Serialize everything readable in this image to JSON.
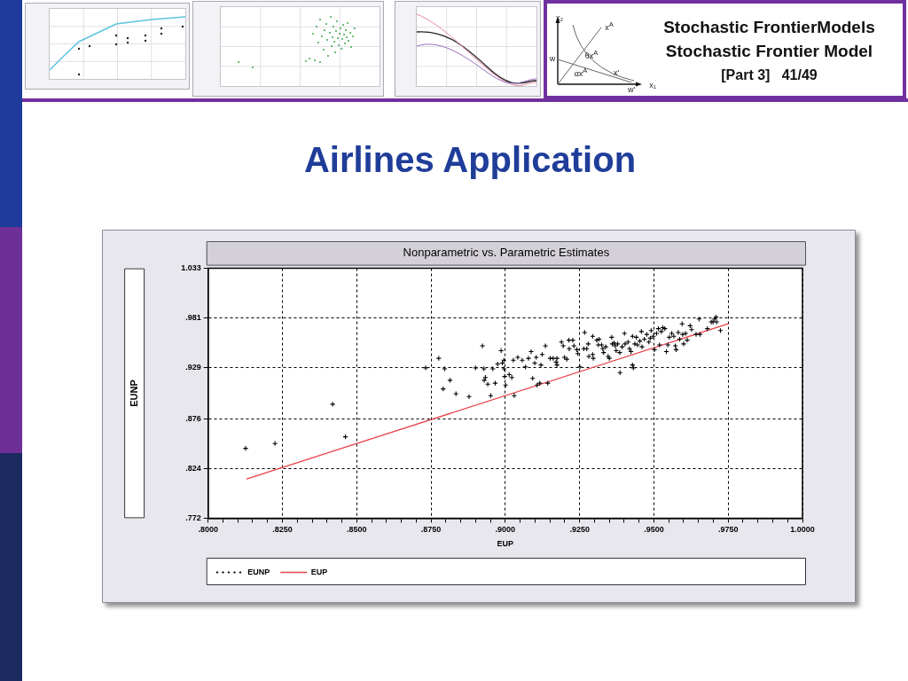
{
  "chart_data": {
    "type": "scatter",
    "title": "Airlines Application",
    "subtitle": "Nonparametric vs. Parametric Estimates",
    "xlabel": "EUP",
    "ylabel": "EUNP",
    "xlim": [
      0.8,
      1.0
    ],
    "xticks": [
      {
        "value": 0.8,
        "label": ".8000"
      },
      {
        "value": 0.805,
        "label": null
      },
      {
        "value": 0.81,
        "label": null
      },
      {
        "value": 0.815,
        "label": null
      },
      {
        "value": 0.82,
        "label": null
      },
      {
        "value": 0.825,
        "label": ".8250"
      },
      {
        "value": 0.83,
        "label": null
      },
      {
        "value": 0.835,
        "label": null
      },
      {
        "value": 0.84,
        "label": null
      },
      {
        "value": 0.845,
        "label": null
      },
      {
        "value": 0.85,
        "label": ".8500"
      },
      {
        "value": 0.855,
        "label": null
      },
      {
        "value": 0.86,
        "label": null
      },
      {
        "value": 0.865,
        "label": null
      },
      {
        "value": 0.87,
        "label": null
      },
      {
        "value": 0.875,
        "label": ".8750"
      },
      {
        "value": 0.88,
        "label": null
      },
      {
        "value": 0.885,
        "label": null
      },
      {
        "value": 0.89,
        "label": null
      },
      {
        "value": 0.895,
        "label": null
      },
      {
        "value": 0.9,
        "label": ".9000"
      },
      {
        "value": 0.905,
        "label": null
      },
      {
        "value": 0.91,
        "label": null
      },
      {
        "value": 0.915,
        "label": null
      },
      {
        "value": 0.92,
        "label": null
      },
      {
        "value": 0.925,
        "label": ".9250"
      },
      {
        "value": 0.93,
        "label": null
      },
      {
        "value": 0.935,
        "label": null
      },
      {
        "value": 0.94,
        "label": null
      },
      {
        "value": 0.945,
        "label": null
      },
      {
        "value": 0.95,
        "label": ".9500"
      },
      {
        "value": 0.955,
        "label": null
      },
      {
        "value": 0.96,
        "label": null
      },
      {
        "value": 0.965,
        "label": null
      },
      {
        "value": 0.97,
        "label": null
      },
      {
        "value": 0.975,
        "label": ".9750"
      },
      {
        "value": 0.98,
        "label": null
      },
      {
        "value": 0.985,
        "label": null
      },
      {
        "value": 0.99,
        "label": null
      },
      {
        "value": 0.995,
        "label": null
      },
      {
        "value": 1.0,
        "label": "1.0000"
      }
    ],
    "ylim": [
      0.772,
      1.033
    ],
    "yticks": [
      {
        "value": 0.772,
        "label": ".772"
      },
      {
        "value": 0.824,
        "label": ".824"
      },
      {
        "value": 0.876,
        "label": ".876"
      },
      {
        "value": 0.929,
        "label": ".929"
      },
      {
        "value": 0.981,
        "label": ".981"
      },
      1.033
    ],
    "grid": true,
    "legend": "bottom",
    "series": [
      {
        "name": "EUNP",
        "type": "scatter",
        "color": "#000000",
        "marker": "cross",
        "x": [
          0.8126,
          0.8225,
          0.8419,
          0.8462,
          0.8732,
          0.8776,
          0.8796,
          0.8791,
          0.8814,
          0.8834,
          0.8878,
          0.89,
          0.8923,
          0.8928,
          0.8933,
          0.8929,
          0.8941,
          0.8951,
          0.8958,
          0.8966,
          0.8974,
          0.8986,
          0.899,
          0.8996,
          0.8995,
          0.9001,
          0.9013,
          0.8998,
          0.9022,
          0.903,
          0.9027,
          0.9042,
          0.9057,
          0.9068,
          0.9078,
          0.9087,
          0.9092,
          0.9099,
          0.9104,
          0.9107,
          0.9116,
          0.912,
          0.9124,
          0.9135,
          0.9143,
          0.9151,
          0.9161,
          0.9174,
          0.9174,
          0.9171,
          0.9189,
          0.9195,
          0.9199,
          0.9207,
          0.9214,
          0.9227,
          0.9215,
          0.9231,
          0.9241,
          0.9244,
          0.9251,
          0.9267,
          0.9264,
          0.9274,
          0.9279,
          0.9281,
          0.9294,
          0.9294,
          0.9296,
          0.9308,
          0.9316,
          0.9313,
          0.9324,
          0.9328,
          0.9331,
          0.9338,
          0.9346,
          0.935,
          0.9358,
          0.936,
          0.9366,
          0.937,
          0.9373,
          0.9378,
          0.9385,
          0.9386,
          0.9393,
          0.9401,
          0.9403,
          0.9413,
          0.9418,
          0.9423,
          0.9428,
          0.9428,
          0.9431,
          0.9436,
          0.9441,
          0.9445,
          0.9453,
          0.9458,
          0.946,
          0.9468,
          0.9476,
          0.9483,
          0.9488,
          0.9491,
          0.9498,
          0.9502,
          0.9509,
          0.9515,
          0.9519,
          0.9525,
          0.953,
          0.9537,
          0.9542,
          0.9547,
          0.9552,
          0.956,
          0.9567,
          0.9572,
          0.9575,
          0.9582,
          0.9587,
          0.9595,
          0.9597,
          0.96,
          0.9607,
          0.9612,
          0.9622,
          0.9627,
          0.9642,
          0.9652,
          0.9655,
          0.968,
          0.9693,
          0.9699,
          0.9704,
          0.9709,
          0.9711,
          0.9724
        ],
        "values": [
          0.845,
          0.85,
          0.891,
          0.857,
          0.929,
          0.939,
          0.928,
          0.907,
          0.916,
          0.902,
          0.899,
          0.929,
          0.952,
          0.928,
          0.919,
          0.916,
          0.912,
          0.9,
          0.928,
          0.913,
          0.933,
          0.947,
          0.934,
          0.928,
          0.937,
          0.911,
          0.922,
          0.92,
          0.919,
          0.9,
          0.937,
          0.94,
          0.937,
          0.93,
          0.939,
          0.946,
          0.918,
          0.934,
          0.94,
          0.911,
          0.913,
          0.932,
          0.943,
          0.952,
          0.913,
          0.939,
          0.939,
          0.939,
          0.932,
          0.935,
          0.956,
          0.952,
          0.94,
          0.938,
          0.958,
          0.958,
          0.949,
          0.952,
          0.948,
          0.944,
          0.93,
          0.966,
          0.949,
          0.949,
          0.954,
          0.941,
          0.943,
          0.962,
          0.939,
          0.958,
          0.959,
          0.953,
          0.953,
          0.949,
          0.945,
          0.951,
          0.941,
          0.939,
          0.961,
          0.954,
          0.955,
          0.952,
          0.947,
          0.954,
          0.945,
          0.924,
          0.951,
          0.965,
          0.954,
          0.956,
          0.949,
          0.946,
          0.962,
          0.932,
          0.929,
          0.954,
          0.961,
          0.953,
          0.957,
          0.967,
          0.951,
          0.959,
          0.964,
          0.956,
          0.96,
          0.968,
          0.962,
          0.948,
          0.965,
          0.97,
          0.953,
          0.967,
          0.971,
          0.97,
          0.946,
          0.953,
          0.961,
          0.965,
          0.962,
          0.952,
          0.948,
          0.966,
          0.959,
          0.975,
          0.964,
          0.954,
          0.965,
          0.958,
          0.973,
          0.969,
          0.964,
          0.98,
          0.964,
          0.97,
          0.977,
          0.977,
          0.98,
          0.982,
          0.977,
          0.968
        ]
      },
      {
        "name": "EUP",
        "type": "line",
        "color": "#e8404a",
        "x": [
          0.813,
          0.975
        ],
        "values": [
          0.813,
          0.975
        ]
      }
    ],
    "annotations": [
      "Stochastic FrontierModels",
      "Stochastic Frontier Model",
      "[Part 3]   41/49",
      "x₂",
      "x$^{A}$",
      "θx$^{A}$",
      "w",
      "αx$^{A}$",
      "x'",
      "w'",
      "x₁"
    ]
  }
}
